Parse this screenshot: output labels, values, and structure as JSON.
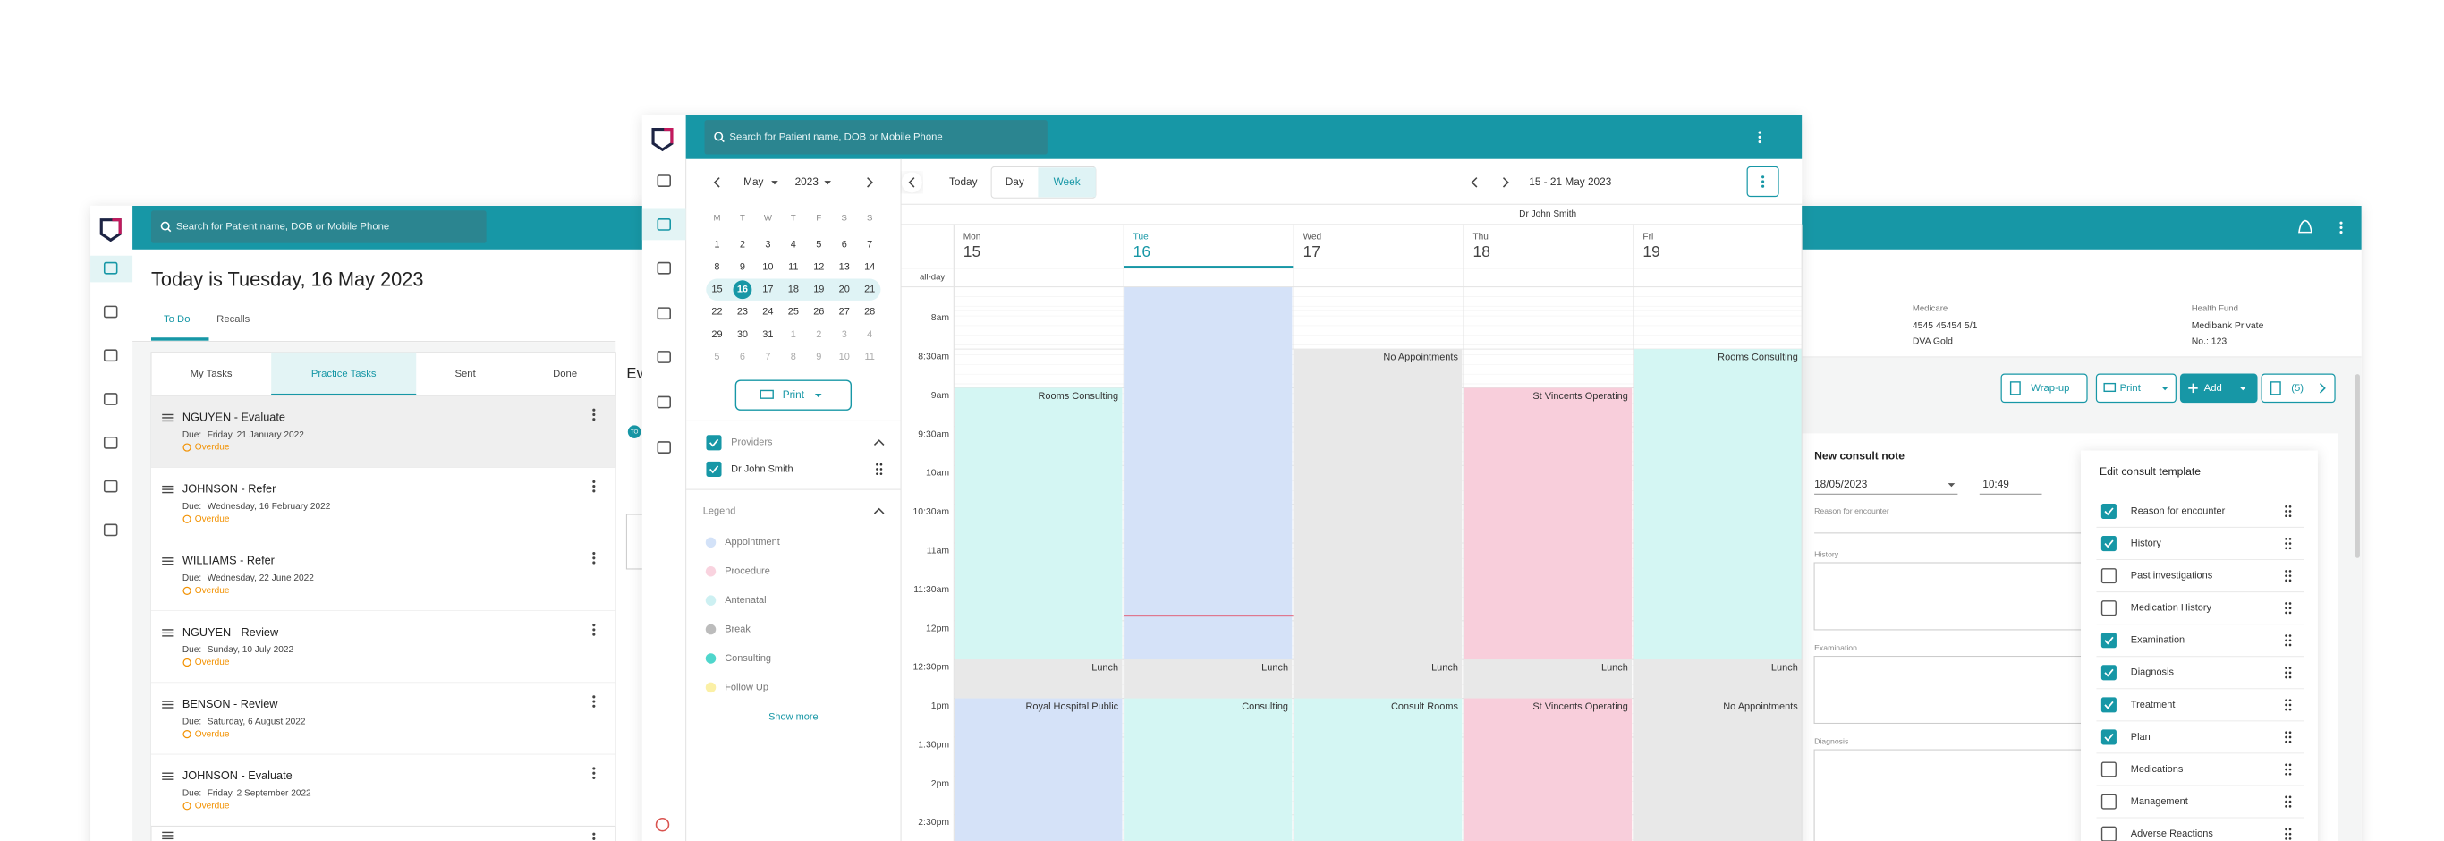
{
  "back_window": {
    "search_placeholder": "Search for Patient name, DOB or Mobile Phone",
    "heading": "Today is Tuesday, 16 May 2023",
    "tabs": [
      "To Do",
      "Recalls"
    ],
    "task_tabs": [
      "My Tasks",
      "Practice Tasks",
      "Sent",
      "Done"
    ],
    "due_label": "Due:",
    "tasks": [
      {
        "title": "NGUYEN - Evaluate",
        "due": "Friday, 21 January 2022",
        "status": "Overdue"
      },
      {
        "title": "JOHNSON - Refer",
        "due": "Wednesday, 16 February 2022",
        "status": "Overdue"
      },
      {
        "title": "WILLIAMS - Refer",
        "due": "Wednesday, 22 June 2022",
        "status": "Overdue"
      },
      {
        "title": "NGUYEN - Review",
        "due": "Sunday, 10 July 2022",
        "status": "Overdue"
      },
      {
        "title": "BENSON - Review",
        "due": "Saturday, 6 August 2022",
        "status": "Overdue"
      },
      {
        "title": "JOHNSON - Evaluate",
        "due": "Friday, 2 September 2022",
        "status": "Overdue"
      }
    ],
    "partial_heading": "Ev",
    "badge": "TO",
    "patient": {
      "medicare_label": "Medicare",
      "medicare_number": "4545 45454 5/1",
      "medicare_note": "DVA Gold",
      "fund_label": "Health Fund",
      "fund_name": "Medibank Private",
      "fund_number": "No.: 123"
    },
    "actions": [
      "Wrap-up",
      "Print",
      "Add",
      "(5)"
    ],
    "consult_note": {
      "title": "New consult note",
      "date": "18/05/2023",
      "time": "10:49",
      "fields": [
        "Reason for encounter",
        "History",
        "Examination",
        "Diagnosis"
      ]
    },
    "template": {
      "title": "Edit consult template",
      "items": [
        {
          "label": "Reason for encounter",
          "checked": true
        },
        {
          "label": "History",
          "checked": true
        },
        {
          "label": "Past investigations",
          "checked": false
        },
        {
          "label": "Medication History",
          "checked": false
        },
        {
          "label": "Examination",
          "checked": true
        },
        {
          "label": "Diagnosis",
          "checked": true
        },
        {
          "label": "Treatment",
          "checked": true
        },
        {
          "label": "Plan",
          "checked": true
        },
        {
          "label": "Medications",
          "checked": false
        },
        {
          "label": "Management",
          "checked": false
        },
        {
          "label": "Adverse Reactions",
          "checked": false
        }
      ]
    }
  },
  "front_window": {
    "search_placeholder": "Search for Patient name, DOB or Mobile Phone",
    "mini_calendar": {
      "month": "May",
      "year": "2023",
      "weekdays": [
        "M",
        "T",
        "W",
        "T",
        "F",
        "S",
        "S"
      ],
      "weeks": [
        [
          1,
          2,
          3,
          4,
          5,
          6,
          7
        ],
        [
          8,
          9,
          10,
          11,
          12,
          13,
          14
        ],
        [
          15,
          16,
          17,
          18,
          19,
          20,
          21
        ],
        [
          22,
          23,
          24,
          25,
          26,
          27,
          28
        ],
        [
          29,
          30,
          31,
          1,
          2,
          3,
          4
        ],
        [
          5,
          6,
          7,
          8,
          9,
          10,
          11
        ]
      ],
      "selected": 16
    },
    "print": "Print",
    "providers": {
      "title": "Providers",
      "items": [
        "Dr John Smith"
      ]
    },
    "legend": {
      "title": "Legend",
      "items": [
        {
          "name": "Appointment",
          "color": "#d3e2f8"
        },
        {
          "name": "Procedure",
          "color": "#f9d3df"
        },
        {
          "name": "Antenatal",
          "color": "#cdf0f2"
        },
        {
          "name": "Break",
          "color": "#bcbcbc"
        },
        {
          "name": "Consulting",
          "color": "#4fd6cc"
        },
        {
          "name": "Follow Up",
          "color": "#fbf0a6"
        }
      ]
    },
    "show_more": "Show more",
    "toolbar": {
      "today": "Today",
      "views": [
        "Day",
        "Week"
      ],
      "active_view": "Week",
      "range": "15 - 21 May 2023"
    },
    "provider": "Dr John Smith",
    "all_day": "all-day",
    "times": [
      "8am",
      "8:30am",
      "9am",
      "9:30am",
      "10am",
      "10:30am",
      "11am",
      "11:30am",
      "12pm",
      "12:30pm",
      "1pm",
      "1:30pm",
      "2pm",
      "2:30pm"
    ],
    "days": [
      {
        "dow": "Mon",
        "date": 15,
        "events": [
          {
            "start": "9am",
            "end": "12:30pm",
            "label": "Rooms Consulting",
            "color": "#d4f6f3"
          },
          {
            "start": "12:30pm",
            "end": "1pm",
            "label": "Lunch",
            "color": "#e8e8e8"
          },
          {
            "start": "1pm",
            "end": null,
            "label": "Royal Hospital Public",
            "color": "#d5e2f8"
          }
        ]
      },
      {
        "dow": "Tue",
        "date": 16,
        "events": [
          {
            "start": null,
            "end": "12:30pm",
            "color": "#d5e2f8"
          },
          {
            "start": "12:30pm",
            "end": "1pm",
            "label": "Lunch",
            "color": "#e8e8e8"
          },
          {
            "start": "1pm",
            "end": null,
            "label": "Consulting",
            "color": "#d4f6f3"
          }
        ]
      },
      {
        "dow": "Wed",
        "date": 17,
        "events": [
          {
            "start": "8:30am",
            "end": "12:30pm",
            "label": "No Appointments",
            "color": "#e8e8e8"
          },
          {
            "start": "12:30pm",
            "end": "1pm",
            "label": "Lunch",
            "color": "#e8e8e8"
          },
          {
            "start": "1pm",
            "end": null,
            "label": "Consult Rooms",
            "color": "#d4f6f3"
          }
        ]
      },
      {
        "dow": "Thu",
        "date": 18,
        "events": [
          {
            "start": "9am",
            "end": "12:30pm",
            "label": "St Vincents Operating",
            "color": "#f8cedb"
          },
          {
            "start": "12:30pm",
            "end": "1pm",
            "label": "Lunch",
            "color": "#e8e8e8"
          },
          {
            "start": "1pm",
            "end": null,
            "label": "St Vincents Operating",
            "color": "#f8cedb"
          }
        ]
      },
      {
        "dow": "Fri",
        "date": 19,
        "events": [
          {
            "start": "8:30am",
            "end": "12:30pm",
            "label": "Rooms Consulting",
            "color": "#d4f6f3"
          },
          {
            "start": "12:30pm",
            "end": "1pm",
            "label": "Lunch",
            "color": "#e8e8e8"
          },
          {
            "start": "1pm",
            "end": null,
            "label": "No Appointments",
            "color": "#e8e8e8"
          }
        ]
      }
    ]
  }
}
